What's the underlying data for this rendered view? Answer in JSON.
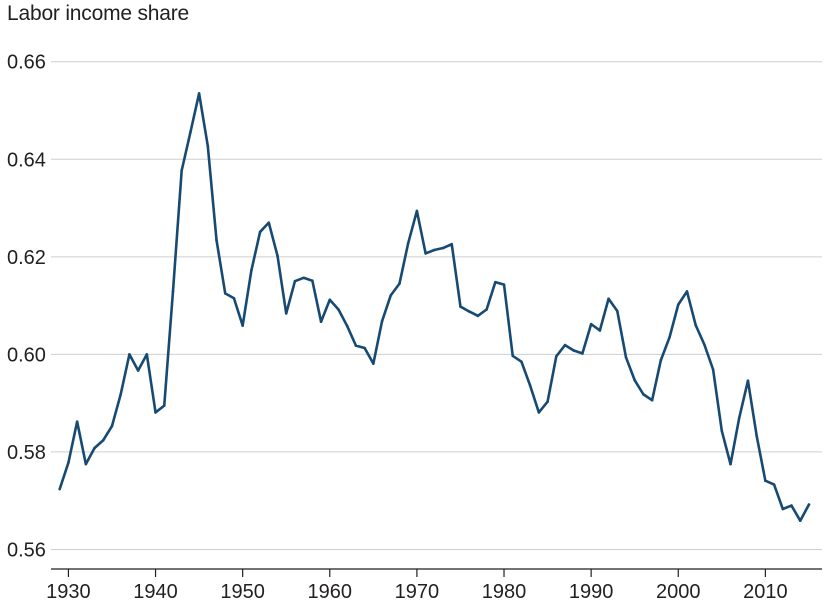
{
  "chart_data": {
    "type": "line",
    "title": "",
    "ylabel": "Labor income share",
    "xlabel": "",
    "xlim": [
      1928,
      2016.5
    ],
    "ylim": [
      0.556,
      0.6665
    ],
    "x_ticks": [
      1930,
      1940,
      1950,
      1960,
      1970,
      1980,
      1990,
      2000,
      2010
    ],
    "x_tick_labels": [
      "1930",
      "1940",
      "1950",
      "1960",
      "1970",
      "1980",
      "1990",
      "2000",
      "2010"
    ],
    "y_ticks": [
      0.56,
      0.58,
      0.6,
      0.62,
      0.64,
      0.66
    ],
    "y_tick_labels": [
      "0.56",
      "0.58",
      "0.60",
      "0.62",
      "0.64",
      "0.66"
    ],
    "grid": "horizontal",
    "colors": {
      "line": "#174a73",
      "grid": "#cfcfcf",
      "axis": "#231f20",
      "text": "#231f20"
    },
    "series": [
      {
        "x": [
          1929,
          1930,
          1931,
          1932,
          1933,
          1934,
          1935,
          1936,
          1937,
          1938,
          1939,
          1940,
          1941,
          1942,
          1943,
          1944,
          1945,
          1946,
          1947,
          1948,
          1949,
          1950,
          1951,
          1952,
          1953,
          1954,
          1955,
          1956,
          1957,
          1958,
          1959,
          1960,
          1961,
          1962,
          1963,
          1964,
          1965,
          1966,
          1967,
          1968,
          1969,
          1970,
          1971,
          1972,
          1973,
          1974,
          1975,
          1976,
          1977,
          1978,
          1979,
          1980,
          1981,
          1982,
          1983,
          1984,
          1985,
          1986,
          1987,
          1988,
          1989,
          1990,
          1991,
          1992,
          1993,
          1994,
          1995,
          1996,
          1997,
          1998,
          1999,
          2000,
          2001,
          2002,
          2003,
          2004,
          2005,
          2006,
          2007,
          2008,
          2009,
          2010,
          2011,
          2012,
          2013,
          2014,
          2015
        ],
        "values": [
          0.5724,
          0.5778,
          0.5862,
          0.5775,
          0.5808,
          0.5824,
          0.5853,
          0.5918,
          0.6,
          0.5967,
          0.6,
          0.5881,
          0.5895,
          0.6129,
          0.6377,
          0.6455,
          0.6535,
          0.6427,
          0.6234,
          0.6125,
          0.6115,
          0.6059,
          0.6172,
          0.6251,
          0.627,
          0.6202,
          0.6084,
          0.615,
          0.6157,
          0.6151,
          0.6067,
          0.6112,
          0.6092,
          0.6058,
          0.6018,
          0.6013,
          0.5981,
          0.6068,
          0.6121,
          0.6145,
          0.6228,
          0.6294,
          0.6207,
          0.6214,
          0.6218,
          0.6226,
          0.6098,
          0.6088,
          0.6079,
          0.6092,
          0.6148,
          0.6143,
          0.5997,
          0.5985,
          0.5936,
          0.5881,
          0.5903,
          0.5996,
          0.6019,
          0.6008,
          0.6002,
          0.6062,
          0.6049,
          0.6114,
          0.6089,
          0.5994,
          0.5947,
          0.5918,
          0.5906,
          0.5988,
          0.6035,
          0.6102,
          0.6129,
          0.606,
          0.602,
          0.5969,
          0.5843,
          0.5775,
          0.587,
          0.5946,
          0.5833,
          0.5741,
          0.5733,
          0.5683,
          0.569,
          0.5659,
          0.5692
        ]
      }
    ]
  }
}
